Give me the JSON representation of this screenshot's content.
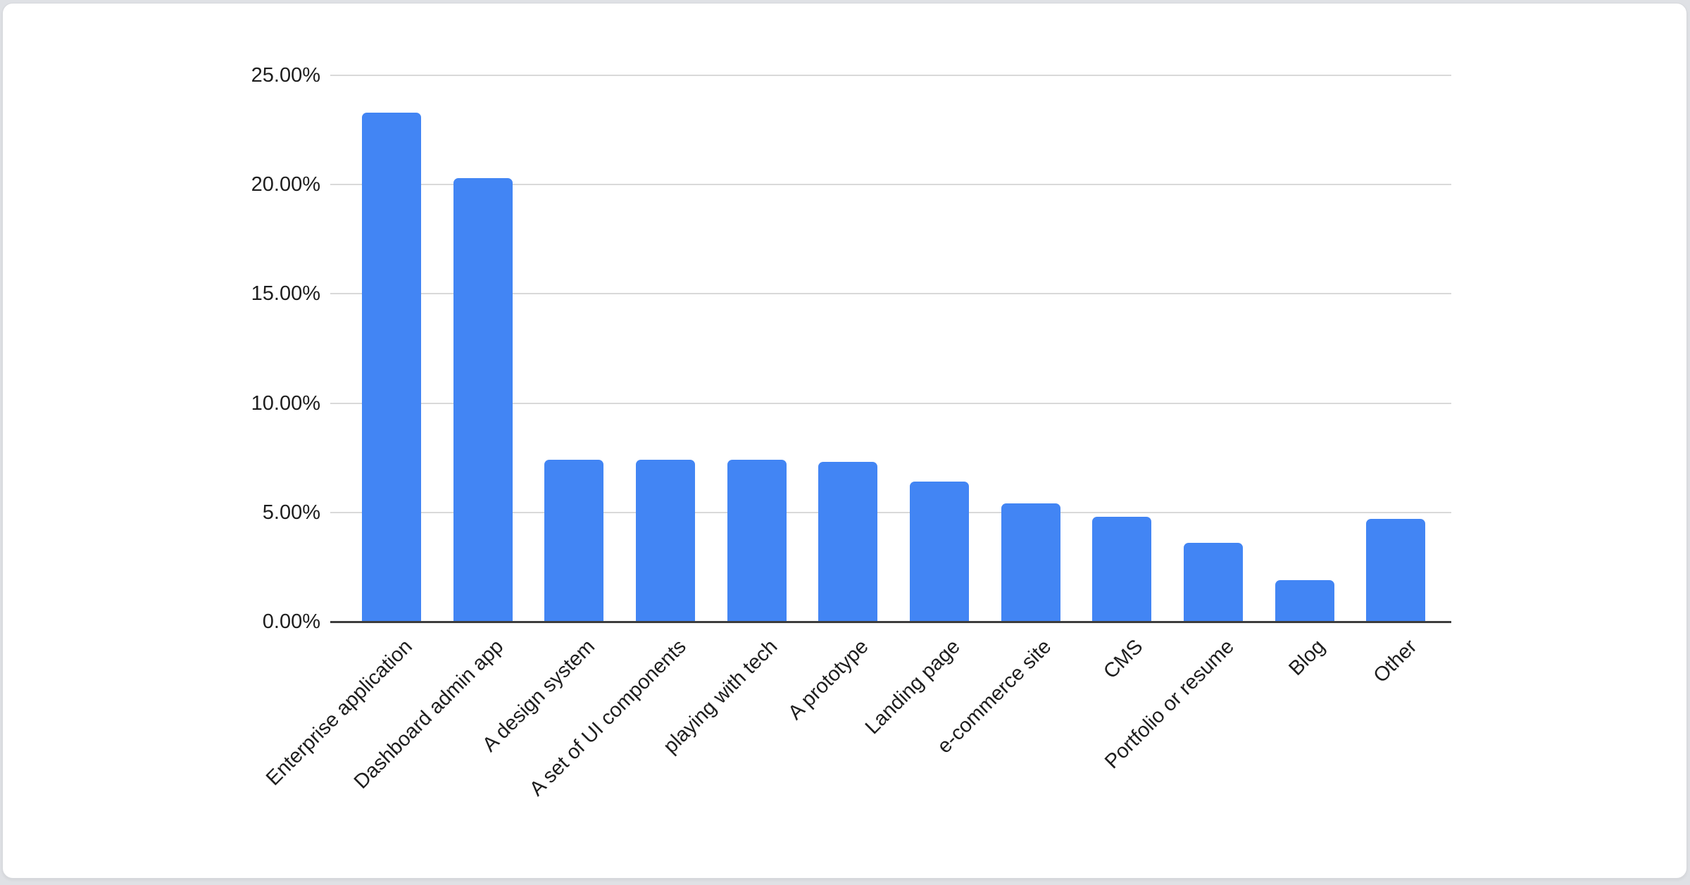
{
  "page": {
    "background_color": "#DFE1E5",
    "card_background_color": "#FFFFFF"
  },
  "chart_data": {
    "type": "bar",
    "title": "",
    "xlabel": "",
    "ylabel": "",
    "categories": [
      "Enterprise application",
      "Dashboard admin app",
      "A design system",
      "A set of UI components",
      "playing with tech",
      "A prototype",
      "Landing page",
      "e-commerce site",
      "CMS",
      "Portfolio or resume",
      "Blog",
      "Other"
    ],
    "values": [
      23.3,
      20.3,
      7.4,
      7.4,
      7.4,
      7.3,
      6.4,
      5.4,
      4.8,
      3.6,
      1.9,
      4.7
    ],
    "value_unit": "%",
    "ylim": [
      0,
      25
    ],
    "ytick_step": 5,
    "ytick_labels": [
      "0.00%",
      "5.00%",
      "10.00%",
      "15.00%",
      "20.00%",
      "25.00%"
    ],
    "grid": true,
    "legend_position": "none",
    "bar_color": "#4285F4",
    "gridline_color": "#D9D9D9",
    "baseline_color": "#3D3D3D",
    "axis_label_color": "#1E1E1E"
  }
}
